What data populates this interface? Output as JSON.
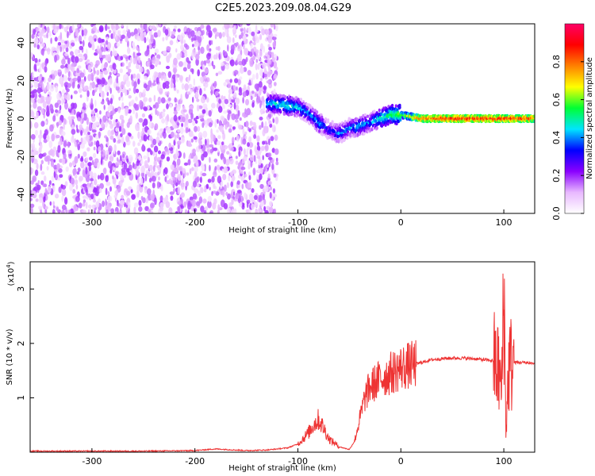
{
  "title": "C2E5.2023.209.08.04.G29",
  "chart_data": [
    {
      "type": "heatmap",
      "xlabel": "Height of straight line (km)",
      "ylabel": "Frequency (Hz)",
      "xlim": [
        -360,
        130
      ],
      "ylim": [
        -50,
        50
      ],
      "xticks": [
        -300,
        -200,
        -100,
        0,
        100
      ],
      "yticks": [
        -40,
        -20,
        0,
        20,
        40
      ],
      "xtick_labels": [
        "-300",
        "-200",
        "-100",
        "0",
        "100"
      ],
      "ytick_labels": [
        "-40",
        "-20",
        "0",
        "20",
        "40"
      ],
      "colorbar": {
        "label": "Normalized spectral amplitude",
        "range": [
          0,
          1
        ],
        "ticks": [
          0.0,
          0.2,
          0.4,
          0.6,
          0.8
        ],
        "tick_labels": [
          "0.0",
          "0.2",
          "0.4",
          "0.6",
          "0.8"
        ],
        "colors": [
          "#ffffff",
          "#e8b8ff",
          "#8a00ff",
          "#0000ff",
          "#00e5ff",
          "#00ff33",
          "#ffff00",
          "#ff8000",
          "#ff0000",
          "#ff0066"
        ]
      },
      "ridge": {
        "x": [
          -130,
          -110,
          -100,
          -90,
          -80,
          -70,
          -60,
          -50,
          -40,
          -30,
          -20,
          -10,
          0,
          20,
          50,
          80,
          100,
          130
        ],
        "freq": [
          8,
          7,
          6,
          3,
          -2,
          -6,
          -8,
          -5,
          -4,
          -2,
          0,
          2,
          2,
          0,
          0,
          0,
          0,
          0
        ],
        "amplitude": [
          0.45,
          0.5,
          0.45,
          0.4,
          0.45,
          0.35,
          0.4,
          0.4,
          0.45,
          0.4,
          0.5,
          0.55,
          0.6,
          0.85,
          0.9,
          0.9,
          0.9,
          0.85
        ]
      },
      "noise_region": {
        "x_range": [
          -360,
          -120
        ],
        "freq_range": [
          -50,
          50
        ]
      }
    },
    {
      "type": "line",
      "xlabel": "Height of straight line (km)",
      "ylabel": "SNR (10 * v/v)",
      "y_multiplier": "(x10",
      "y_multiplier_exp": "4",
      "y_multiplier_close": ")",
      "xlim": [
        -360,
        130
      ],
      "ylim": [
        0,
        3.5
      ],
      "xticks": [
        -300,
        -200,
        -100,
        0,
        100
      ],
      "yticks": [
        1,
        2,
        3
      ],
      "xtick_labels": [
        "-300",
        "-200",
        "-100",
        "0",
        "100"
      ],
      "ytick_labels": [
        "1",
        "2",
        "3"
      ],
      "color": "#ee3333",
      "series": [
        {
          "x": [
            -360,
            -300,
            -250,
            -200,
            -180,
            -150,
            -130,
            -110,
            -100,
            -90,
            -85,
            -80,
            -75,
            -70,
            -60,
            -50,
            -45,
            -40,
            -35,
            -30,
            -20,
            -10,
            0,
            10,
            20,
            30,
            40,
            50,
            60,
            70,
            80,
            90,
            95,
            98,
            100,
            102,
            105,
            110,
            120,
            130
          ],
          "y": [
            0.02,
            0.02,
            0.02,
            0.03,
            0.06,
            0.03,
            0.04,
            0.08,
            0.15,
            0.35,
            0.5,
            0.6,
            0.45,
            0.25,
            0.1,
            0.05,
            0.2,
            0.6,
            1.0,
            1.2,
            1.35,
            1.45,
            1.55,
            1.6,
            1.65,
            1.7,
            1.72,
            1.73,
            1.73,
            1.72,
            1.7,
            1.68,
            1.5,
            1.1,
            3.3,
            0.4,
            1.6,
            1.65,
            1.65,
            1.63
          ]
        }
      ]
    }
  ]
}
